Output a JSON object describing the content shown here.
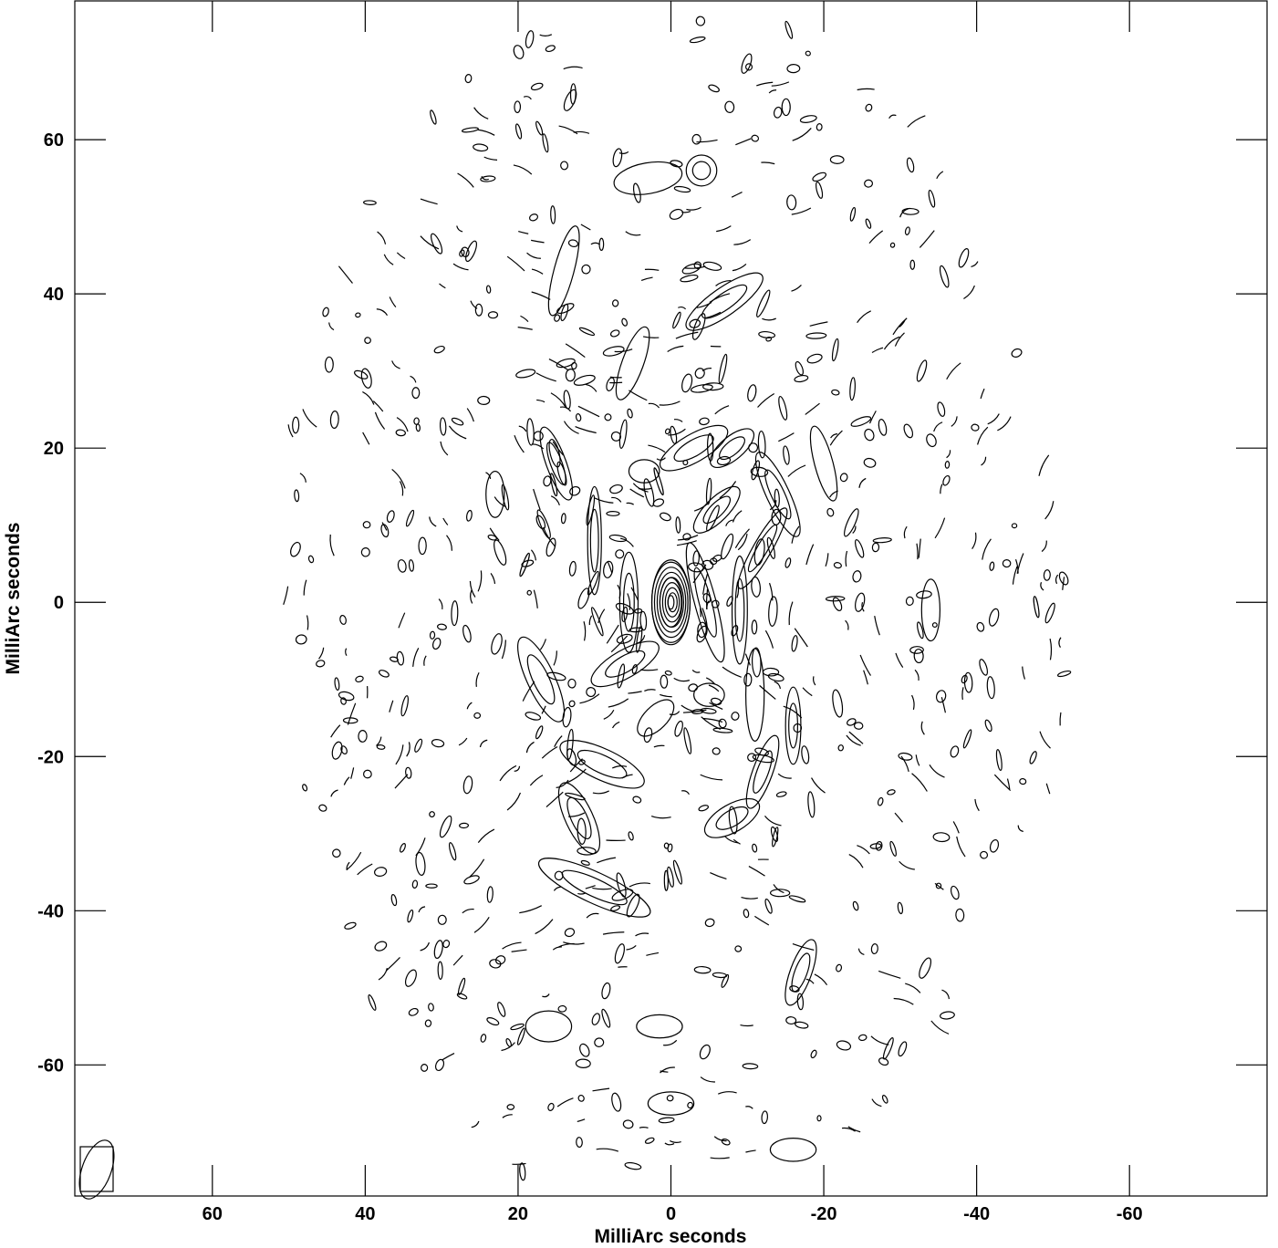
{
  "chart_data": {
    "type": "contour",
    "xlabel": "MilliArc seconds",
    "ylabel": "MilliArc seconds",
    "xlim": [
      78,
      -78
    ],
    "ylim": [
      -77,
      78
    ],
    "xticks": [
      60,
      40,
      20,
      0,
      -20,
      -40,
      -60
    ],
    "yticks": [
      60,
      40,
      20,
      0,
      -20,
      -40,
      -60
    ],
    "xtick_labels": [
      "60",
      "40",
      "20",
      "0",
      "-20",
      "-40",
      "-60"
    ],
    "ytick_labels": [
      "60",
      "40",
      "20",
      "0",
      "-20",
      "-40",
      "-60"
    ],
    "contour_color": "#000000",
    "beam": {
      "x": 72.5,
      "y": -74,
      "width": 2.0,
      "height": 4.2,
      "angle_deg": 20
    },
    "central_source": {
      "x": 0,
      "y": 0,
      "levels": 7
    },
    "features": [
      {
        "x": 0,
        "y": 0,
        "rx": 2.5,
        "ry": 5.5,
        "angle": 0,
        "levels": 3
      },
      {
        "x": 5.5,
        "y": 0,
        "rx": 1.2,
        "ry": 6.5,
        "angle": 0,
        "levels": 2
      },
      {
        "x": -4.5,
        "y": 0,
        "rx": 1.4,
        "ry": 8,
        "angle": 15,
        "levels": 2
      },
      {
        "x": -9,
        "y": -1,
        "rx": 1,
        "ry": 7,
        "angle": 0,
        "levels": 2
      },
      {
        "x": -12,
        "y": 7,
        "rx": 1.2,
        "ry": 6,
        "angle": -30,
        "levels": 2
      },
      {
        "x": 15,
        "y": 18,
        "rx": 1.3,
        "ry": 5,
        "angle": 20,
        "levels": 2
      },
      {
        "x": 10,
        "y": 8,
        "rx": 0.9,
        "ry": 7,
        "angle": 0,
        "levels": 2
      },
      {
        "x": -3,
        "y": 20,
        "rx": 5,
        "ry": 1.8,
        "angle": 30,
        "levels": 2
      },
      {
        "x": -8,
        "y": 20,
        "rx": 3.5,
        "ry": 1.5,
        "angle": 40,
        "levels": 2
      },
      {
        "x": -6,
        "y": 12,
        "rx": 4,
        "ry": 1.5,
        "angle": 45,
        "levels": 2
      },
      {
        "x": 6,
        "y": -8,
        "rx": 5,
        "ry": 1.8,
        "angle": 30,
        "levels": 2
      },
      {
        "x": 2,
        "y": -15,
        "rx": 3,
        "ry": 1.5,
        "angle": 45,
        "levels": 1
      },
      {
        "x": -5,
        "y": -12,
        "rx": 2,
        "ry": 1.5,
        "angle": 0,
        "levels": 1
      },
      {
        "x": 17,
        "y": -10,
        "rx": 1.8,
        "ry": 6,
        "angle": 25,
        "levels": 2
      },
      {
        "x": 9,
        "y": -21,
        "rx": 6,
        "ry": 2,
        "angle": -25,
        "levels": 2
      },
      {
        "x": 12,
        "y": -28,
        "rx": 1.8,
        "ry": 5,
        "angle": 25,
        "levels": 2
      },
      {
        "x": 10,
        "y": -37,
        "rx": 8,
        "ry": 2,
        "angle": -25,
        "levels": 2
      },
      {
        "x": -12,
        "y": -22,
        "rx": 1.3,
        "ry": 5,
        "angle": -20,
        "levels": 2
      },
      {
        "x": -16,
        "y": -16,
        "rx": 1,
        "ry": 5,
        "angle": 0,
        "levels": 2
      },
      {
        "x": -8,
        "y": -28,
        "rx": 4,
        "ry": 1.8,
        "angle": 30,
        "levels": 2
      },
      {
        "x": -11,
        "y": -12,
        "rx": 1.2,
        "ry": 6,
        "angle": 0,
        "levels": 1
      },
      {
        "x": -14,
        "y": 14,
        "rx": 1.5,
        "ry": 6,
        "angle": 25,
        "levels": 2
      },
      {
        "x": -20,
        "y": 18,
        "rx": 1.2,
        "ry": 5,
        "angle": 15,
        "levels": 1
      },
      {
        "x": -7,
        "y": 39,
        "rx": 6,
        "ry": 1.8,
        "angle": 35,
        "levels": 2
      },
      {
        "x": 5,
        "y": 31,
        "rx": 1.4,
        "ry": 5,
        "angle": -20,
        "levels": 1
      },
      {
        "x": 3.5,
        "y": 17,
        "rx": 2,
        "ry": 1.5,
        "angle": 0,
        "levels": 1
      },
      {
        "x": -17,
        "y": -48,
        "rx": 1.4,
        "ry": 4.5,
        "angle": -20,
        "levels": 2
      },
      {
        "x": -34,
        "y": -1,
        "rx": 1.2,
        "ry": 4,
        "angle": 0,
        "levels": 1
      },
      {
        "x": 3,
        "y": 55,
        "rx": 4.5,
        "ry": 2,
        "angle": 10,
        "levels": 1
      },
      {
        "x": -4,
        "y": 56,
        "rx": 2,
        "ry": 2,
        "angle": 0,
        "levels": 2
      },
      {
        "x": 14,
        "y": 43,
        "rx": 1.3,
        "ry": 6,
        "angle": -15,
        "levels": 1
      },
      {
        "x": 23,
        "y": 14,
        "rx": 1.2,
        "ry": 3,
        "angle": 0,
        "levels": 1
      },
      {
        "x": 16,
        "y": -55,
        "rx": 3,
        "ry": 2,
        "angle": 0,
        "levels": 1
      },
      {
        "x": 0,
        "y": -65,
        "rx": 3,
        "ry": 1.5,
        "angle": 0,
        "levels": 1
      },
      {
        "x": 1.5,
        "y": -55,
        "rx": 3,
        "ry": 1.5,
        "angle": 0,
        "levels": 1
      },
      {
        "x": -16,
        "y": -71,
        "rx": 3,
        "ry": 1.5,
        "angle": 0,
        "levels": 1
      }
    ]
  }
}
